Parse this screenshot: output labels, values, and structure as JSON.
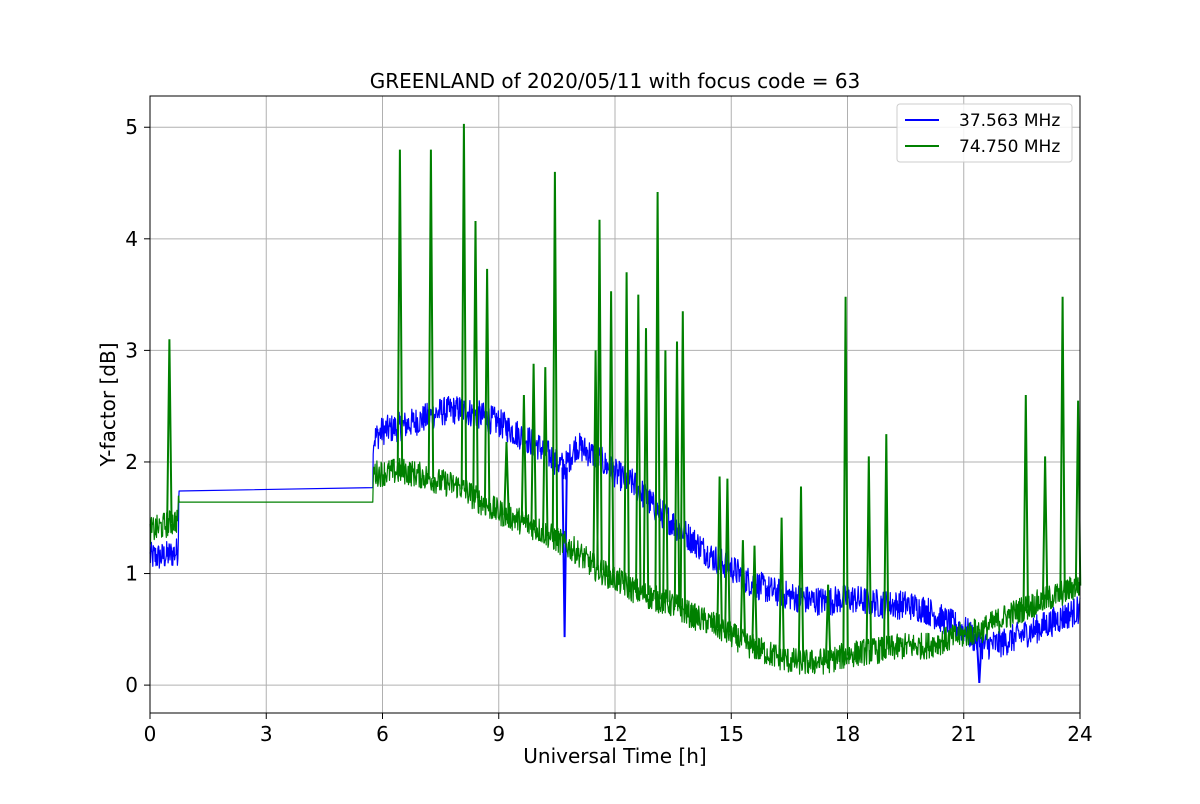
{
  "chart_data": {
    "type": "line",
    "title": "GREENLAND of 2020/05/11 with focus code = 63",
    "xlabel": "Universal Time [h]",
    "ylabel": "Y-factor [dB]",
    "xlim": [
      0,
      24
    ],
    "ylim": [
      -0.25,
      5.28
    ],
    "xticks": [
      0,
      3,
      6,
      9,
      12,
      15,
      18,
      21,
      24
    ],
    "yticks": [
      0,
      1,
      2,
      3,
      4,
      5
    ],
    "grid": true,
    "legend_position": "top-right",
    "series": [
      {
        "name": "37.563 MHz",
        "color": "#0000ff",
        "band": 0.13,
        "x": [
          0,
          0.3,
          0.6,
          0.72,
          0.75,
          5.75,
          5.76,
          6.0,
          6.5,
          7.0,
          7.5,
          8.0,
          8.5,
          9.0,
          9.5,
          10.0,
          10.5,
          10.7,
          11.0,
          11.5,
          12.0,
          12.5,
          13.0,
          13.5,
          14.0,
          14.5,
          15.0,
          15.5,
          16.0,
          16.5,
          17.0,
          17.5,
          18.0,
          18.5,
          19.0,
          19.5,
          20.0,
          20.5,
          21.0,
          21.5,
          22.0,
          22.5,
          23.0,
          23.5,
          24.0
        ],
        "y": [
          1.15,
          1.15,
          1.18,
          1.2,
          1.74,
          1.77,
          2.2,
          2.28,
          2.32,
          2.38,
          2.45,
          2.47,
          2.42,
          2.35,
          2.25,
          2.15,
          2.0,
          1.95,
          2.15,
          2.05,
          1.9,
          1.8,
          1.6,
          1.45,
          1.3,
          1.15,
          1.05,
          0.92,
          0.85,
          0.8,
          0.76,
          0.75,
          0.78,
          0.75,
          0.72,
          0.72,
          0.68,
          0.58,
          0.5,
          0.35,
          0.38,
          0.45,
          0.52,
          0.6,
          0.68
        ],
        "spikes": [
          {
            "x": 10.7,
            "y": 0.43
          },
          {
            "x": 21.4,
            "y": 0.02
          }
        ]
      },
      {
        "name": "74.750 MHz",
        "color": "#008000",
        "band": 0.12,
        "x": [
          0,
          0.3,
          0.7,
          0.75,
          5.75,
          5.76,
          6.0,
          6.5,
          7.0,
          7.5,
          8.0,
          8.5,
          9.0,
          9.5,
          10.0,
          10.5,
          11.0,
          11.5,
          12.0,
          12.5,
          13.0,
          13.5,
          14.0,
          14.5,
          15.0,
          15.5,
          16.0,
          16.5,
          17.0,
          17.5,
          18.0,
          18.5,
          19.0,
          19.5,
          20.0,
          20.5,
          21.0,
          21.5,
          22.0,
          22.5,
          23.0,
          23.5,
          24.0
        ],
        "y": [
          1.38,
          1.42,
          1.48,
          1.64,
          1.64,
          1.9,
          1.9,
          1.92,
          1.88,
          1.82,
          1.78,
          1.65,
          1.55,
          1.48,
          1.4,
          1.3,
          1.2,
          1.05,
          0.95,
          0.85,
          0.78,
          0.72,
          0.62,
          0.55,
          0.45,
          0.35,
          0.28,
          0.22,
          0.2,
          0.22,
          0.27,
          0.3,
          0.32,
          0.35,
          0.35,
          0.4,
          0.45,
          0.5,
          0.6,
          0.68,
          0.75,
          0.82,
          0.9
        ],
        "spikes": [
          {
            "x": 0.5,
            "y": 3.1
          },
          {
            "x": 6.45,
            "y": 4.8
          },
          {
            "x": 7.25,
            "y": 4.8
          },
          {
            "x": 8.1,
            "y": 5.03
          },
          {
            "x": 8.4,
            "y": 4.16
          },
          {
            "x": 8.7,
            "y": 3.73
          },
          {
            "x": 9.2,
            "y": 2.18
          },
          {
            "x": 9.65,
            "y": 2.6
          },
          {
            "x": 9.9,
            "y": 2.88
          },
          {
            "x": 10.2,
            "y": 2.85
          },
          {
            "x": 10.45,
            "y": 4.6
          },
          {
            "x": 11.5,
            "y": 3.0
          },
          {
            "x": 11.6,
            "y": 4.17
          },
          {
            "x": 11.9,
            "y": 3.53
          },
          {
            "x": 12.3,
            "y": 3.7
          },
          {
            "x": 12.6,
            "y": 3.5
          },
          {
            "x": 12.8,
            "y": 3.2
          },
          {
            "x": 13.1,
            "y": 4.42
          },
          {
            "x": 13.3,
            "y": 3.0
          },
          {
            "x": 13.6,
            "y": 3.08
          },
          {
            "x": 13.75,
            "y": 3.35
          },
          {
            "x": 14.7,
            "y": 1.87
          },
          {
            "x": 14.9,
            "y": 1.85
          },
          {
            "x": 15.3,
            "y": 1.3
          },
          {
            "x": 15.6,
            "y": 1.25
          },
          {
            "x": 16.3,
            "y": 1.5
          },
          {
            "x": 16.8,
            "y": 1.78
          },
          {
            "x": 17.5,
            "y": 0.9
          },
          {
            "x": 17.95,
            "y": 3.48
          },
          {
            "x": 18.55,
            "y": 2.05
          },
          {
            "x": 19.0,
            "y": 2.25
          },
          {
            "x": 22.6,
            "y": 2.6
          },
          {
            "x": 23.1,
            "y": 2.05
          },
          {
            "x": 23.55,
            "y": 3.48
          },
          {
            "x": 23.95,
            "y": 2.55
          }
        ]
      }
    ]
  }
}
